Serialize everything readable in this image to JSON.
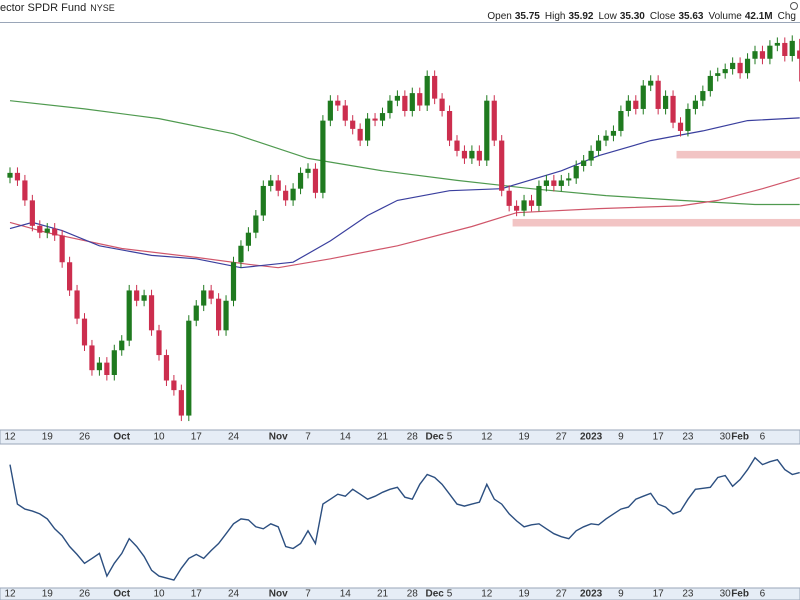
{
  "header": {
    "title": "ector SPDR Fund",
    "exchange": "NYSE",
    "labels": [
      "Open",
      "High",
      "Low",
      "Close",
      "Volume",
      "Chg"
    ],
    "values": [
      "35.75",
      "35.92",
      "35.30",
      "35.63",
      "42.1M"
    ]
  },
  "chart_data": [
    {
      "type": "candlestick",
      "categories": [
        "12",
        null,
        null,
        null,
        null,
        "19",
        null,
        null,
        null,
        null,
        "26",
        null,
        null,
        null,
        null,
        "Oct",
        null,
        null,
        null,
        null,
        "10",
        null,
        null,
        null,
        null,
        "17",
        null,
        null,
        null,
        null,
        "24",
        null,
        null,
        null,
        null,
        null,
        "Nov",
        null,
        null,
        null,
        "7",
        null,
        null,
        null,
        null,
        "14",
        null,
        null,
        null,
        null,
        "21",
        null,
        null,
        null,
        "28",
        null,
        null,
        "Dec",
        null,
        "5",
        null,
        null,
        null,
        null,
        "12",
        null,
        null,
        null,
        null,
        "19",
        null,
        null,
        null,
        null,
        "27",
        null,
        null,
        null,
        "2023",
        null,
        null,
        null,
        "9",
        null,
        null,
        null,
        null,
        "17",
        null,
        null,
        null,
        "23",
        null,
        null,
        null,
        null,
        "30",
        null,
        "Feb",
        null,
        null,
        "6",
        null,
        null,
        null,
        null,
        null
      ],
      "open": [
        33.9,
        33.97,
        33.86,
        33.57,
        33.2,
        33.1,
        33.16,
        33.06,
        32.67,
        32.26,
        31.85,
        31.46,
        31.1,
        31.21,
        31.03,
        31.39,
        31.53,
        32.26,
        32.11,
        32.19,
        31.68,
        31.32,
        30.95,
        30.81,
        30.44,
        31.82,
        32.04,
        32.26,
        32.14,
        31.68,
        32.11,
        32.67,
        32.91,
        33.1,
        33.35,
        33.78,
        33.86,
        33.71,
        33.57,
        33.74,
        33.97,
        34.03,
        33.68,
        34.73,
        35.02,
        34.95,
        34.73,
        34.61,
        34.44,
        34.76,
        34.73,
        34.84,
        35.02,
        35.09,
        34.87,
        35.13,
        34.95,
        35.38,
        35.05,
        34.87,
        34.44,
        34.29,
        34.18,
        34.29,
        34.15,
        35.02,
        34.44,
        33.71,
        33.49,
        33.42,
        33.57,
        33.49,
        33.78,
        33.86,
        33.78,
        33.86,
        33.89,
        34.07,
        34.15,
        34.29,
        34.44,
        34.51,
        34.58,
        34.87,
        35.02,
        34.9,
        35.24,
        35.31,
        34.9,
        35.09,
        34.7,
        34.58,
        34.9,
        35.02,
        35.16,
        35.38,
        35.42,
        35.48,
        35.57,
        35.42,
        35.63,
        35.74,
        35.63,
        35.82,
        35.86,
        35.67,
        35.75
      ],
      "high": [
        34.05,
        34.05,
        33.94,
        33.65,
        33.28,
        33.24,
        33.24,
        33.14,
        32.75,
        32.34,
        31.93,
        31.54,
        31.29,
        31.29,
        31.47,
        31.61,
        32.34,
        32.34,
        32.27,
        32.27,
        31.76,
        31.4,
        31.03,
        30.89,
        31.9,
        32.12,
        32.34,
        32.34,
        32.22,
        32.19,
        32.75,
        32.99,
        33.18,
        33.43,
        33.86,
        33.94,
        33.94,
        33.79,
        33.82,
        34.05,
        34.11,
        34.11,
        34.81,
        35.1,
        35.1,
        35.03,
        34.81,
        34.69,
        34.84,
        34.84,
        34.92,
        35.1,
        35.17,
        35.17,
        35.21,
        35.21,
        35.46,
        35.46,
        35.13,
        34.95,
        34.52,
        34.37,
        34.37,
        34.37,
        35.1,
        35.1,
        34.52,
        33.79,
        33.57,
        33.65,
        33.65,
        33.86,
        33.94,
        33.94,
        33.94,
        33.97,
        34.15,
        34.23,
        34.37,
        34.52,
        34.59,
        34.66,
        34.95,
        35.1,
        35.1,
        35.32,
        35.39,
        35.39,
        35.17,
        35.17,
        34.78,
        34.98,
        35.1,
        35.24,
        35.46,
        35.5,
        35.56,
        35.65,
        35.65,
        35.71,
        35.82,
        35.82,
        35.9,
        35.94,
        35.94,
        35.97,
        35.92
      ],
      "low": [
        33.82,
        33.78,
        33.49,
        33.12,
        33.02,
        33.02,
        32.98,
        32.59,
        32.18,
        31.77,
        31.38,
        31.02,
        31.02,
        30.95,
        30.95,
        31.31,
        31.45,
        32.03,
        32.03,
        31.6,
        31.24,
        30.87,
        30.73,
        30.36,
        30.36,
        31.74,
        31.96,
        32.06,
        31.6,
        31.6,
        32.03,
        32.59,
        32.83,
        33.02,
        33.27,
        33.7,
        33.63,
        33.49,
        33.49,
        33.66,
        33.89,
        33.6,
        33.6,
        34.65,
        34.87,
        34.65,
        34.53,
        34.36,
        34.36,
        34.65,
        34.65,
        34.76,
        34.94,
        34.79,
        34.79,
        34.87,
        34.87,
        34.97,
        34.79,
        34.36,
        34.21,
        34.1,
        34.1,
        34.07,
        34.07,
        34.36,
        33.63,
        33.41,
        33.34,
        33.34,
        33.41,
        33.41,
        33.7,
        33.7,
        33.7,
        33.78,
        33.81,
        33.99,
        34.07,
        34.21,
        34.36,
        34.43,
        34.5,
        34.79,
        34.82,
        34.82,
        35.16,
        34.82,
        34.82,
        34.62,
        34.5,
        34.5,
        34.82,
        34.94,
        35.08,
        35.3,
        35.34,
        35.4,
        35.34,
        35.34,
        35.55,
        35.55,
        35.55,
        35.74,
        35.59,
        35.59,
        35.3
      ],
      "close": [
        33.97,
        33.86,
        33.57,
        33.2,
        33.1,
        33.16,
        33.06,
        32.67,
        32.26,
        31.85,
        31.46,
        31.1,
        31.21,
        31.03,
        31.39,
        31.53,
        32.26,
        32.11,
        32.19,
        31.68,
        31.32,
        30.95,
        30.81,
        30.44,
        31.82,
        32.04,
        32.26,
        32.14,
        31.68,
        32.11,
        32.67,
        32.91,
        33.1,
        33.35,
        33.78,
        33.86,
        33.71,
        33.57,
        33.74,
        33.97,
        34.03,
        33.68,
        34.73,
        35.02,
        34.95,
        34.73,
        34.61,
        34.44,
        34.76,
        34.73,
        34.84,
        35.02,
        35.09,
        34.87,
        35.13,
        34.95,
        35.38,
        35.05,
        34.87,
        34.44,
        34.29,
        34.18,
        34.29,
        34.15,
        35.02,
        34.44,
        33.71,
        33.49,
        33.42,
        33.57,
        33.49,
        33.78,
        33.86,
        33.78,
        33.86,
        33.89,
        34.07,
        34.15,
        34.29,
        34.44,
        34.51,
        34.58,
        34.87,
        35.02,
        34.9,
        35.24,
        35.31,
        34.9,
        35.09,
        34.7,
        34.58,
        34.9,
        35.02,
        35.16,
        35.38,
        35.42,
        35.48,
        35.57,
        35.42,
        35.63,
        35.74,
        35.63,
        35.82,
        35.86,
        35.67,
        35.89,
        35.63
      ],
      "up_color": "#1f7a1f",
      "down_color": "#cc2e4e",
      "ylim": [
        30.23,
        36.15
      ],
      "overlays": [
        {
          "color": "#4f9a4f",
          "x": [
            0,
            10,
            20,
            30,
            40,
            50,
            60,
            70,
            80,
            90,
            100,
            106
          ],
          "values": [
            35.02,
            34.9,
            34.76,
            34.54,
            34.18,
            34.0,
            33.86,
            33.74,
            33.64,
            33.57,
            33.51,
            33.51
          ]
        },
        {
          "color": "#d0566a",
          "x": [
            0,
            5,
            15,
            25,
            32,
            36,
            43,
            52,
            62,
            68,
            79,
            90,
            95,
            101,
            106
          ],
          "values": [
            33.25,
            33.1,
            32.87,
            32.74,
            32.64,
            32.59,
            32.72,
            32.91,
            33.19,
            33.39,
            33.45,
            33.49,
            33.57,
            33.74,
            33.9
          ]
        },
        {
          "color": "#3a3f9e",
          "x": [
            0,
            3,
            7,
            12,
            19,
            25,
            31,
            38,
            43,
            48,
            52,
            59,
            66,
            74,
            79,
            86,
            93,
            99,
            106
          ],
          "values": [
            33.16,
            33.25,
            33.13,
            32.91,
            32.77,
            32.72,
            32.59,
            32.67,
            32.98,
            33.35,
            33.57,
            33.71,
            33.74,
            34.0,
            34.22,
            34.44,
            34.58,
            34.73,
            34.77
          ]
        }
      ],
      "highlights": [
        {
          "color": "#f2c4c4",
          "x": [
            90,
            106
          ],
          "range": [
            34.18,
            34.29
          ]
        },
        {
          "color": "#f2c4c4",
          "x": [
            68,
            106
          ],
          "range": [
            33.19,
            33.3
          ]
        }
      ]
    },
    {
      "type": "line",
      "categories": [
        "12",
        null,
        null,
        null,
        null,
        "19",
        null,
        null,
        null,
        null,
        "26",
        null,
        null,
        null,
        null,
        "Oct",
        null,
        null,
        null,
        null,
        "10",
        null,
        null,
        null,
        null,
        "17",
        null,
        null,
        null,
        null,
        "24",
        null,
        null,
        null,
        null,
        null,
        "Nov",
        null,
        null,
        null,
        "7",
        null,
        null,
        null,
        null,
        "14",
        null,
        null,
        null,
        null,
        "21",
        null,
        null,
        null,
        "28",
        null,
        null,
        "Dec",
        null,
        "5",
        null,
        null,
        null,
        null,
        "12",
        null,
        null,
        null,
        null,
        "19",
        null,
        null,
        null,
        null,
        "27",
        null,
        null,
        null,
        "2023",
        null,
        null,
        null,
        "9",
        null,
        null,
        null,
        null,
        "17",
        null,
        null,
        null,
        "23",
        null,
        null,
        null,
        null,
        "30",
        null,
        "Feb",
        null,
        null,
        "6",
        null,
        null,
        null,
        null,
        null
      ],
      "color": "#2c4f80",
      "ylim": [
        0,
        100
      ],
      "values": [
        86.3,
        58.7,
        55.2,
        53.8,
        51.8,
        48.3,
        41.4,
        36.6,
        29.0,
        23.5,
        17.3,
        20.7,
        24.2,
        8.3,
        17.3,
        24.2,
        34.5,
        29.0,
        22.1,
        12.4,
        8.3,
        6.9,
        5.5,
        13.8,
        20.7,
        23.5,
        20.7,
        26.2,
        31.1,
        38.0,
        44.9,
        48.3,
        47.6,
        42.8,
        41.4,
        44.9,
        42.8,
        29.0,
        27.6,
        31.1,
        40.0,
        31.1,
        58.7,
        62.1,
        65.6,
        64.2,
        69.0,
        65.6,
        62.1,
        64.2,
        66.9,
        69.0,
        70.4,
        63.5,
        62.1,
        72.5,
        79.4,
        77.3,
        72.5,
        65.6,
        58.7,
        57.3,
        58.7,
        60.0,
        72.5,
        62.1,
        58.7,
        51.8,
        46.9,
        42.8,
        44.2,
        44.9,
        41.4,
        38.0,
        35.9,
        34.5,
        40.0,
        42.8,
        44.9,
        44.2,
        48.3,
        51.8,
        55.2,
        56.6,
        62.1,
        64.2,
        66.2,
        58.7,
        56.6,
        51.8,
        53.8,
        62.1,
        69.0,
        69.7,
        70.4,
        77.3,
        78.7,
        71.1,
        75.9,
        82.8,
        91.1,
        86.3,
        88.3,
        89.7,
        82.8,
        79.4,
        80.7
      ]
    }
  ]
}
